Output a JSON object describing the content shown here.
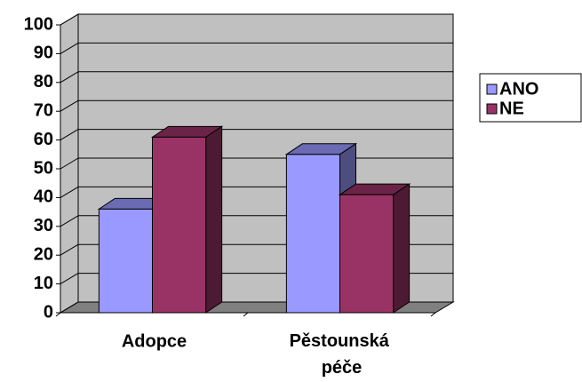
{
  "chart_data": {
    "type": "bar3d",
    "categories": [
      "Adopce",
      "Pěstounská péče"
    ],
    "series": [
      {
        "name": "ANO",
        "color": "#9999ff",
        "values": [
          36,
          55
        ]
      },
      {
        "name": "NE",
        "color": "#993366",
        "values": [
          61,
          41
        ]
      }
    ],
    "ylim": [
      0,
      100
    ],
    "yticks": [
      0,
      10,
      20,
      30,
      40,
      50,
      60,
      70,
      80,
      90,
      100
    ],
    "grid": true,
    "legend": "right"
  }
}
